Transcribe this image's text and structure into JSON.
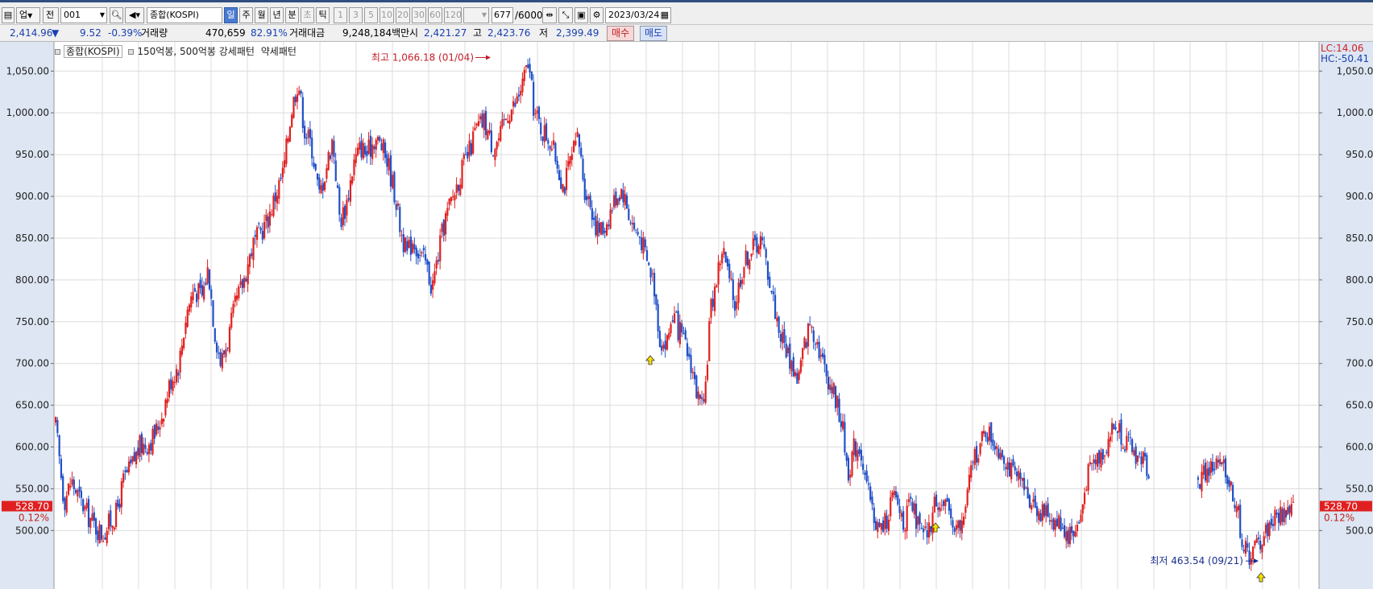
{
  "toolbar": {
    "mode_label": "업",
    "type_label": "전",
    "code_value": "001",
    "name_value": "종합(KOSPI)",
    "periods": [
      "일",
      "주",
      "월",
      "년",
      "분",
      "초",
      "틱"
    ],
    "selected_period": "일",
    "intervals": [
      "1",
      "3",
      "5",
      "10",
      "20",
      "30",
      "60",
      "120"
    ],
    "count_value": "677",
    "count_total": "/6000",
    "date_value": "2023/03/24"
  },
  "info": {
    "price": "2,414.96",
    "change": "9.52",
    "change_rate": "-0.39%",
    "volume_label": "거래량",
    "volume": "470,659",
    "volume_rate": "82.91%",
    "amount_label": "거래대금",
    "amount": "9,248,184백만",
    "open_label": "시",
    "open": "2,421.27",
    "high_label": "고",
    "high": "2,423.76",
    "low_label": "저",
    "low": "2,399.49",
    "buy_label": "매수",
    "sell_label": "매도"
  },
  "legend": {
    "index_label": "종합(KOSPI)",
    "pattern_label": "150억봉, 500억봉 강세패턴",
    "weak_label": "약세패턴"
  },
  "annotations": {
    "high_text": "최고 1,066.18 (01/04)",
    "low_text": "최저 463.54 (09/21)",
    "lc": "LC:14.06",
    "hc": "HC:-50.41",
    "current_price": "528.70",
    "current_pct": "0.12%"
  },
  "colors": {
    "up": "#e02020",
    "down": "#1f4fc8",
    "grid": "#dcdcdc",
    "axis_bg": "#dde6f2"
  },
  "chart_data": {
    "type": "candlestick",
    "title": "종합(KOSPI)",
    "ylim": [
      430,
      1085
    ],
    "y_ticks": [
      500,
      550,
      600,
      650,
      700,
      750,
      800,
      850,
      900,
      950,
      1000,
      1050
    ],
    "y_tick_labels": [
      "500.00",
      "550.00",
      "600.00",
      "650.00",
      "700.00",
      "750.00",
      "800.00",
      "850.00",
      "900.00",
      "950.00",
      "1,000.00",
      "1,050.00"
    ],
    "grid": true,
    "high": {
      "value": 1066.18,
      "date": "01/04"
    },
    "low": {
      "value": 463.54,
      "date": "09/21"
    },
    "last": 528.7,
    "approx_close_path": [
      [
        0,
        625
      ],
      [
        8,
        535
      ],
      [
        15,
        560
      ],
      [
        22,
        540
      ],
      [
        30,
        520
      ],
      [
        38,
        505
      ],
      [
        45,
        495
      ],
      [
        52,
        510
      ],
      [
        58,
        520
      ],
      [
        65,
        560
      ],
      [
        72,
        575
      ],
      [
        80,
        600
      ],
      [
        88,
        605
      ],
      [
        95,
        615
      ],
      [
        102,
        640
      ],
      [
        110,
        680
      ],
      [
        118,
        700
      ],
      [
        125,
        760
      ],
      [
        132,
        790
      ],
      [
        140,
        780
      ],
      [
        146,
        815
      ],
      [
        152,
        740
      ],
      [
        158,
        700
      ],
      [
        165,
        730
      ],
      [
        172,
        770
      ],
      [
        180,
        800
      ],
      [
        188,
        840
      ],
      [
        195,
        855
      ],
      [
        202,
        870
      ],
      [
        210,
        900
      ],
      [
        218,
        930
      ],
      [
        225,
        1000
      ],
      [
        232,
        1040
      ],
      [
        238,
        980
      ],
      [
        245,
        960
      ],
      [
        252,
        900
      ],
      [
        258,
        930
      ],
      [
        265,
        970
      ],
      [
        272,
        870
      ],
      [
        278,
        890
      ],
      [
        285,
        940
      ],
      [
        292,
        960
      ],
      [
        298,
        950
      ],
      [
        305,
        970
      ],
      [
        312,
        960
      ],
      [
        318,
        940
      ],
      [
        325,
        900
      ],
      [
        330,
        860
      ],
      [
        336,
        830
      ],
      [
        342,
        850
      ],
      [
        348,
        830
      ],
      [
        354,
        820
      ],
      [
        360,
        790
      ],
      [
        366,
        830
      ],
      [
        372,
        870
      ],
      [
        380,
        900
      ],
      [
        388,
        930
      ],
      [
        395,
        950
      ],
      [
        402,
        980
      ],
      [
        410,
        990
      ],
      [
        418,
        960
      ],
      [
        425,
        970
      ],
      [
        432,
        1000
      ],
      [
        440,
        1010
      ],
      [
        448,
        1040
      ],
      [
        452,
        1060
      ],
      [
        458,
        1000
      ],
      [
        465,
        980
      ],
      [
        472,
        970
      ],
      [
        480,
        940
      ],
      [
        486,
        910
      ],
      [
        492,
        940
      ],
      [
        500,
        970
      ],
      [
        506,
        910
      ],
      [
        512,
        890
      ],
      [
        518,
        860
      ],
      [
        524,
        860
      ],
      [
        530,
        880
      ],
      [
        536,
        900
      ],
      [
        542,
        910
      ],
      [
        548,
        880
      ],
      [
        554,
        860
      ],
      [
        560,
        850
      ],
      [
        566,
        820
      ],
      [
        572,
        800
      ],
      [
        578,
        730
      ],
      [
        584,
        720
      ],
      [
        590,
        760
      ],
      [
        596,
        740
      ],
      [
        602,
        720
      ],
      [
        608,
        700
      ],
      [
        614,
        660
      ],
      [
        620,
        640
      ],
      [
        626,
        760
      ],
      [
        632,
        800
      ],
      [
        638,
        840
      ],
      [
        644,
        800
      ],
      [
        650,
        770
      ],
      [
        656,
        810
      ],
      [
        662,
        830
      ],
      [
        668,
        840
      ],
      [
        674,
        850
      ],
      [
        680,
        820
      ],
      [
        686,
        780
      ],
      [
        692,
        740
      ],
      [
        698,
        720
      ],
      [
        704,
        700
      ],
      [
        710,
        680
      ],
      [
        716,
        720
      ],
      [
        722,
        750
      ],
      [
        728,
        730
      ],
      [
        734,
        700
      ],
      [
        740,
        680
      ],
      [
        746,
        660
      ],
      [
        752,
        630
      ],
      [
        758,
        570
      ],
      [
        764,
        600
      ],
      [
        770,
        600
      ],
      [
        776,
        550
      ],
      [
        782,
        520
      ],
      [
        788,
        500
      ],
      [
        794,
        510
      ],
      [
        800,
        540
      ],
      [
        806,
        530
      ],
      [
        812,
        510
      ],
      [
        818,
        530
      ],
      [
        824,
        510
      ],
      [
        830,
        490
      ],
      [
        836,
        500
      ],
      [
        842,
        540
      ],
      [
        848,
        530
      ],
      [
        854,
        520
      ],
      [
        860,
        510
      ],
      [
        866,
        500
      ],
      [
        872,
        540
      ],
      [
        878,
        590
      ],
      [
        884,
        600
      ],
      [
        890,
        620
      ],
      [
        896,
        610
      ],
      [
        902,
        600
      ],
      [
        908,
        590
      ],
      [
        914,
        570
      ],
      [
        920,
        560
      ],
      [
        926,
        550
      ],
      [
        932,
        540
      ],
      [
        938,
        530
      ],
      [
        944,
        520
      ],
      [
        950,
        520
      ],
      [
        956,
        510
      ],
      [
        962,
        510
      ],
      [
        968,
        495
      ],
      [
        974,
        500
      ],
      [
        980,
        510
      ],
      [
        986,
        560
      ],
      [
        992,
        580
      ],
      [
        998,
        590
      ],
      [
        1004,
        600
      ],
      [
        1010,
        620
      ],
      [
        1016,
        625
      ],
      [
        1022,
        610
      ],
      [
        1028,
        600
      ],
      [
        1034,
        590
      ],
      [
        1040,
        585
      ],
      [
        1046,
        575
      ],
      [
        1052,
        560
      ],
      [
        1058,
        550
      ],
      [
        1064,
        545
      ],
      [
        1070,
        530
      ],
      [
        1076,
        520
      ],
      [
        1082,
        535
      ],
      [
        1088,
        545
      ],
      [
        1094,
        560
      ],
      [
        1100,
        570
      ],
      [
        1106,
        575
      ],
      [
        1112,
        580
      ],
      [
        1118,
        570
      ],
      [
        1124,
        555
      ],
      [
        1130,
        530
      ],
      [
        1136,
        480
      ],
      [
        1142,
        470
      ],
      [
        1148,
        480
      ],
      [
        1154,
        490
      ],
      [
        1160,
        505
      ],
      [
        1166,
        515
      ],
      [
        1172,
        520
      ],
      [
        1178,
        525
      ],
      [
        1184,
        528.7
      ]
    ]
  }
}
